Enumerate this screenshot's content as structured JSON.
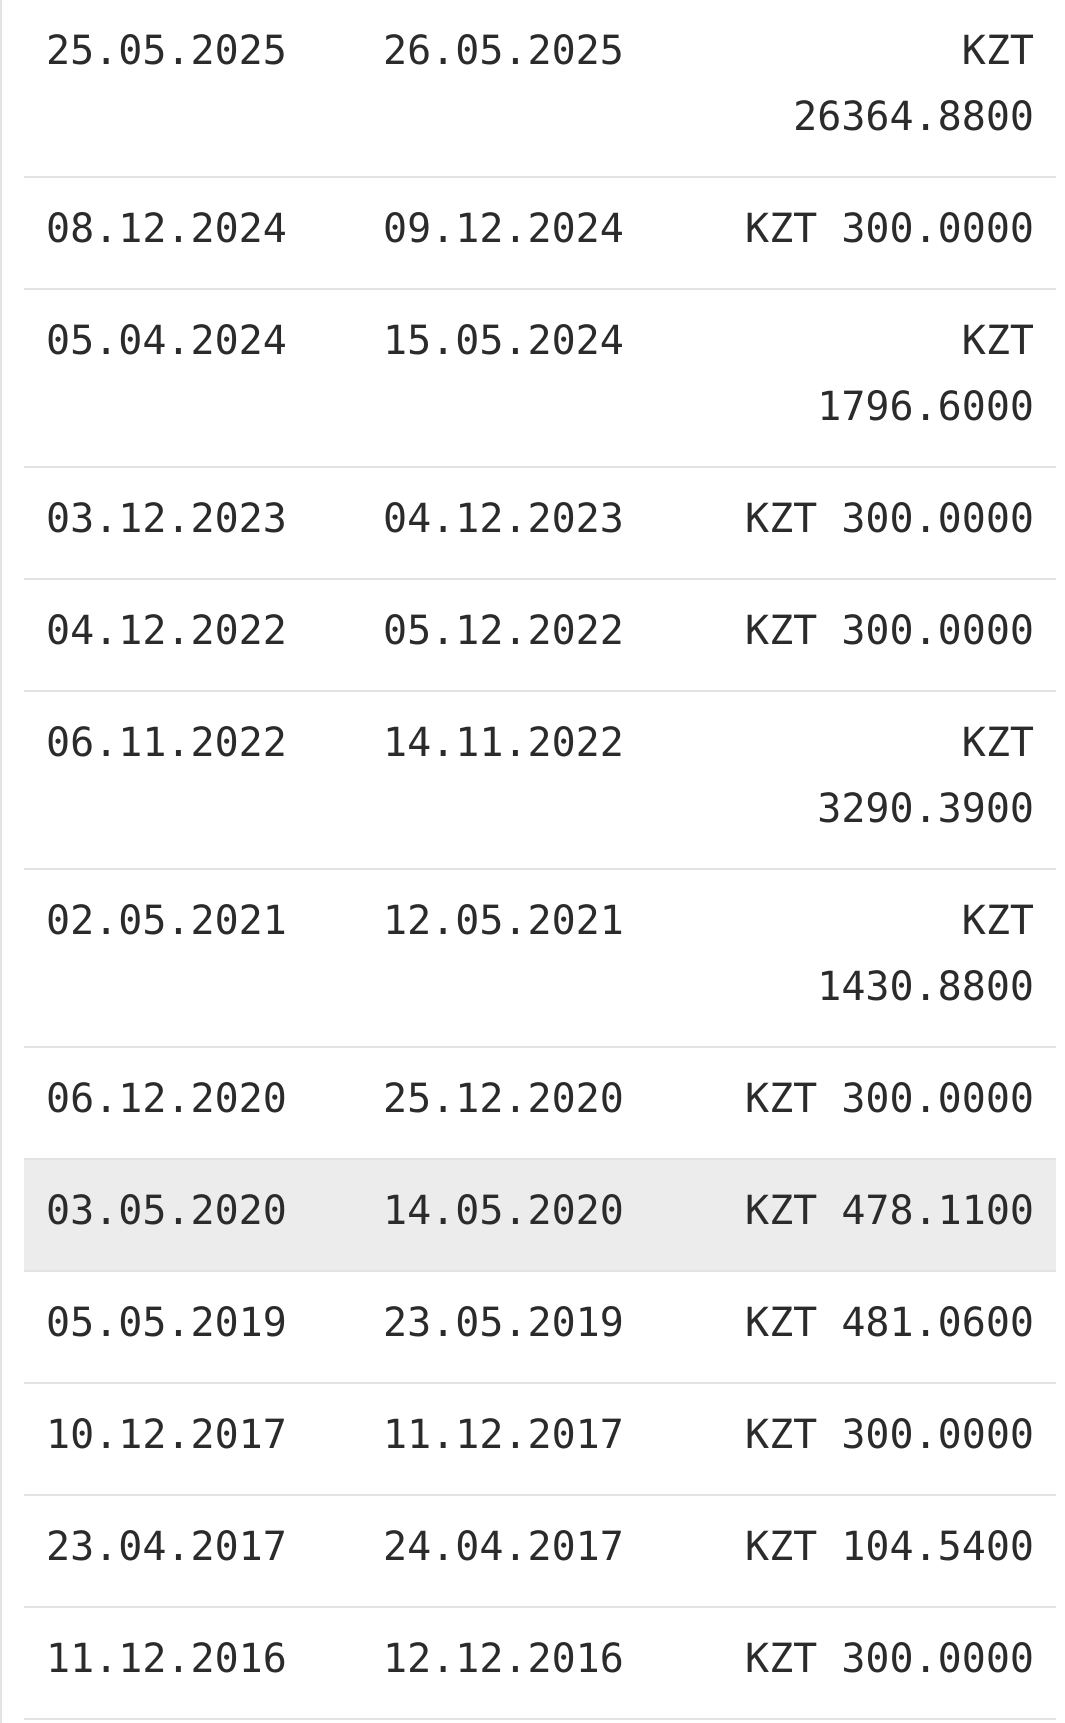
{
  "rows": [
    {
      "date_from": "25.05.2025",
      "date_to": "26.05.2025",
      "currency": "KZT",
      "amount": "26364.8800",
      "wrapped": true,
      "highlighted": false
    },
    {
      "date_from": "08.12.2024",
      "date_to": "09.12.2024",
      "currency": "KZT",
      "amount": "300.0000",
      "wrapped": false,
      "highlighted": false
    },
    {
      "date_from": "05.04.2024",
      "date_to": "15.05.2024",
      "currency": "KZT",
      "amount": "1796.6000",
      "wrapped": true,
      "highlighted": false
    },
    {
      "date_from": "03.12.2023",
      "date_to": "04.12.2023",
      "currency": "KZT",
      "amount": "300.0000",
      "wrapped": false,
      "highlighted": false
    },
    {
      "date_from": "04.12.2022",
      "date_to": "05.12.2022",
      "currency": "KZT",
      "amount": "300.0000",
      "wrapped": false,
      "highlighted": false
    },
    {
      "date_from": "06.11.2022",
      "date_to": "14.11.2022",
      "currency": "KZT",
      "amount": "3290.3900",
      "wrapped": true,
      "highlighted": false
    },
    {
      "date_from": "02.05.2021",
      "date_to": "12.05.2021",
      "currency": "KZT",
      "amount": "1430.8800",
      "wrapped": true,
      "highlighted": false
    },
    {
      "date_from": "06.12.2020",
      "date_to": "25.12.2020",
      "currency": "KZT",
      "amount": "300.0000",
      "wrapped": false,
      "highlighted": false
    },
    {
      "date_from": "03.05.2020",
      "date_to": "14.05.2020",
      "currency": "KZT",
      "amount": "478.1100",
      "wrapped": false,
      "highlighted": true
    },
    {
      "date_from": "05.05.2019",
      "date_to": "23.05.2019",
      "currency": "KZT",
      "amount": "481.0600",
      "wrapped": false,
      "highlighted": false
    },
    {
      "date_from": "10.12.2017",
      "date_to": "11.12.2017",
      "currency": "KZT",
      "amount": "300.0000",
      "wrapped": false,
      "highlighted": false
    },
    {
      "date_from": "23.04.2017",
      "date_to": "24.04.2017",
      "currency": "KZT",
      "amount": "104.5400",
      "wrapped": false,
      "highlighted": false
    },
    {
      "date_from": "11.12.2016",
      "date_to": "12.12.2016",
      "currency": "KZT",
      "amount": "300.0000",
      "wrapped": false,
      "highlighted": false
    }
  ],
  "colors": {
    "text": "#2b2b2b",
    "divider": "#e3e3e3",
    "highlight_row": "#ececec",
    "background": "#ffffff"
  }
}
